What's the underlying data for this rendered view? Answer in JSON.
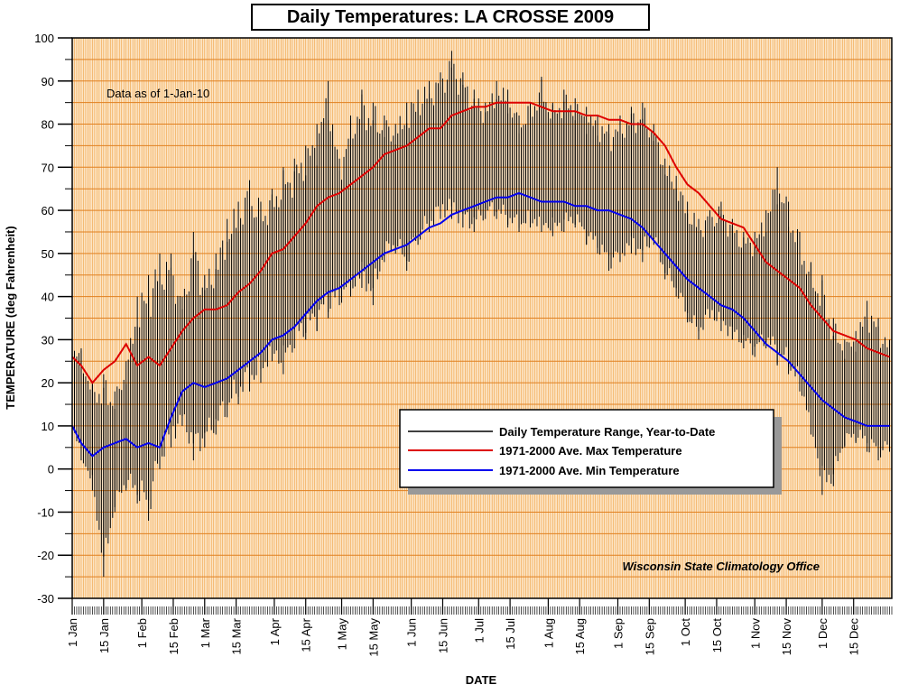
{
  "chart_data": {
    "type": "line",
    "title": "Daily Temperatures: LA CROSSE 2009",
    "xlabel": "DATE",
    "ylabel": "TEMPERATURE (deg Fahrenheit)",
    "ylim": [
      -30,
      100
    ],
    "yticks": [
      -30,
      -20,
      -10,
      0,
      10,
      20,
      30,
      40,
      50,
      60,
      70,
      80,
      90,
      100
    ],
    "xlim_days": [
      1,
      366
    ],
    "xticks": [
      {
        "label": "1 Jan",
        "day": 1
      },
      {
        "label": "15 Jan",
        "day": 15
      },
      {
        "label": "1 Feb",
        "day": 32
      },
      {
        "label": "15 Feb",
        "day": 46
      },
      {
        "label": "1 Mar",
        "day": 60
      },
      {
        "label": "15 Mar",
        "day": 74
      },
      {
        "label": "1 Apr",
        "day": 91
      },
      {
        "label": "15 Apr",
        "day": 105
      },
      {
        "label": "1 May",
        "day": 121
      },
      {
        "label": "15 May",
        "day": 135
      },
      {
        "label": "1 Jun",
        "day": 152
      },
      {
        "label": "15 Jun",
        "day": 166
      },
      {
        "label": "1 Jul",
        "day": 182
      },
      {
        "label": "15 Jul",
        "day": 196
      },
      {
        "label": "1 Aug",
        "day": 213
      },
      {
        "label": "15 Aug",
        "day": 227
      },
      {
        "label": "1 Sep",
        "day": 244
      },
      {
        "label": "15 Sep",
        "day": 258
      },
      {
        "label": "1 Oct",
        "day": 274
      },
      {
        "label": "15 Oct",
        "day": 288
      },
      {
        "label": "1 Nov",
        "day": 305
      },
      {
        "label": "15 Nov",
        "day": 319
      },
      {
        "label": "1 Dec",
        "day": 335
      },
      {
        "label": "15 Dec",
        "day": 349
      }
    ],
    "annotations": {
      "data_as_of": "Data as of 1-Jan-10",
      "credit": "Wisconsin State Climatology Office"
    },
    "legend": {
      "placement": "lower-right",
      "entries": [
        {
          "label": "Daily Temperature Range, Year-to-Date",
          "color": "#000000"
        },
        {
          "label": "1971-2000 Ave. Max Temperature",
          "color": "#dd0000"
        },
        {
          "label": "1971-2000 Ave. Min Temperature",
          "color": "#0000ee"
        }
      ]
    },
    "grid": true,
    "colors": {
      "plot_background": "#fce4c4",
      "grid_vertical": "#f0a040",
      "grid_horizontal": "#e08020",
      "range_bars": "#000000",
      "avg_max": "#dd0000",
      "avg_min": "#0000ee"
    },
    "series": [
      {
        "name": "1971-2000 Ave. Max Temperature",
        "x": [
          1,
          5,
          10,
          15,
          20,
          25,
          30,
          35,
          40,
          45,
          50,
          55,
          60,
          65,
          70,
          75,
          80,
          85,
          90,
          95,
          100,
          105,
          110,
          115,
          120,
          125,
          130,
          135,
          140,
          145,
          150,
          155,
          160,
          165,
          170,
          175,
          180,
          185,
          190,
          195,
          200,
          205,
          210,
          215,
          220,
          225,
          230,
          235,
          240,
          245,
          250,
          255,
          260,
          265,
          270,
          275,
          280,
          285,
          290,
          295,
          300,
          305,
          310,
          315,
          320,
          325,
          330,
          335,
          340,
          345,
          350,
          355,
          360,
          365
        ],
        "y": [
          26,
          24,
          20,
          23,
          25,
          29,
          24,
          26,
          24,
          28,
          32,
          35,
          37,
          37,
          38,
          41,
          43,
          46,
          50,
          51,
          54,
          57,
          61,
          63,
          64,
          66,
          68,
          70,
          73,
          74,
          75,
          77,
          79,
          79,
          82,
          83,
          84,
          84,
          85,
          85,
          85,
          85,
          84,
          83,
          83,
          83,
          82,
          82,
          81,
          81,
          80,
          80,
          78,
          75,
          70,
          66,
          64,
          61,
          58,
          57,
          56,
          52,
          48,
          46,
          44,
          42,
          38,
          35,
          32,
          31,
          30,
          28,
          27,
          26
        ]
      },
      {
        "name": "1971-2000 Ave. Min Temperature",
        "x": [
          1,
          5,
          10,
          15,
          20,
          25,
          30,
          35,
          40,
          45,
          50,
          55,
          60,
          65,
          70,
          75,
          80,
          85,
          90,
          95,
          100,
          105,
          110,
          115,
          120,
          125,
          130,
          135,
          140,
          145,
          150,
          155,
          160,
          165,
          170,
          175,
          180,
          185,
          190,
          195,
          200,
          205,
          210,
          215,
          220,
          225,
          230,
          235,
          240,
          245,
          250,
          255,
          260,
          265,
          270,
          275,
          280,
          285,
          290,
          295,
          300,
          305,
          310,
          315,
          320,
          325,
          330,
          335,
          340,
          345,
          350,
          355,
          360,
          365
        ],
        "y": [
          10,
          6,
          3,
          5,
          6,
          7,
          5,
          6,
          5,
          12,
          18,
          20,
          19,
          20,
          21,
          23,
          25,
          27,
          30,
          31,
          33,
          36,
          39,
          41,
          42,
          44,
          46,
          48,
          50,
          51,
          52,
          54,
          56,
          57,
          59,
          60,
          61,
          62,
          63,
          63,
          64,
          63,
          62,
          62,
          62,
          61,
          61,
          60,
          60,
          59,
          58,
          56,
          53,
          50,
          47,
          44,
          42,
          40,
          38,
          37,
          35,
          32,
          29,
          27,
          25,
          22,
          19,
          16,
          14,
          12,
          11,
          10,
          10,
          10
        ]
      },
      {
        "name": "Daily Temperature Range, Year-to-Date",
        "type": "range",
        "x": [
          1,
          5,
          10,
          15,
          20,
          25,
          30,
          35,
          40,
          45,
          50,
          55,
          60,
          65,
          70,
          75,
          80,
          85,
          90,
          95,
          100,
          105,
          110,
          115,
          120,
          125,
          130,
          135,
          140,
          145,
          150,
          155,
          160,
          165,
          170,
          175,
          180,
          185,
          190,
          195,
          200,
          205,
          210,
          215,
          220,
          225,
          230,
          235,
          240,
          245,
          250,
          255,
          260,
          265,
          270,
          275,
          280,
          285,
          290,
          295,
          300,
          305,
          310,
          315,
          320,
          325,
          330,
          335,
          340,
          345,
          350,
          355,
          360,
          365
        ],
        "low": [
          8,
          2,
          -5,
          -25,
          -10,
          -5,
          -8,
          -12,
          0,
          5,
          10,
          2,
          5,
          8,
          12,
          15,
          18,
          20,
          25,
          22,
          28,
          30,
          32,
          35,
          38,
          40,
          42,
          38,
          48,
          50,
          46,
          52,
          55,
          58,
          58,
          56,
          55,
          58,
          58,
          56,
          55,
          56,
          55,
          54,
          55,
          56,
          52,
          50,
          46,
          48,
          50,
          48,
          52,
          44,
          40,
          34,
          30,
          35,
          32,
          30,
          28,
          26,
          28,
          24,
          22,
          18,
          8,
          -6,
          -4,
          5,
          6,
          4,
          2,
          4
        ],
        "high": [
          30,
          28,
          20,
          22,
          18,
          25,
          40,
          45,
          50,
          50,
          40,
          55,
          45,
          50,
          58,
          62,
          67,
          62,
          65,
          70,
          72,
          75,
          80,
          90,
          72,
          82,
          88,
          85,
          82,
          80,
          85,
          88,
          90,
          92,
          97,
          92,
          88,
          85,
          90,
          88,
          82,
          85,
          91,
          85,
          88,
          86,
          84,
          82,
          80,
          82,
          84,
          85,
          80,
          72,
          68,
          62,
          58,
          60,
          62,
          58,
          55,
          55,
          60,
          70,
          62,
          55,
          48,
          45,
          35,
          30,
          32,
          39,
          35,
          30
        ]
      }
    ]
  }
}
